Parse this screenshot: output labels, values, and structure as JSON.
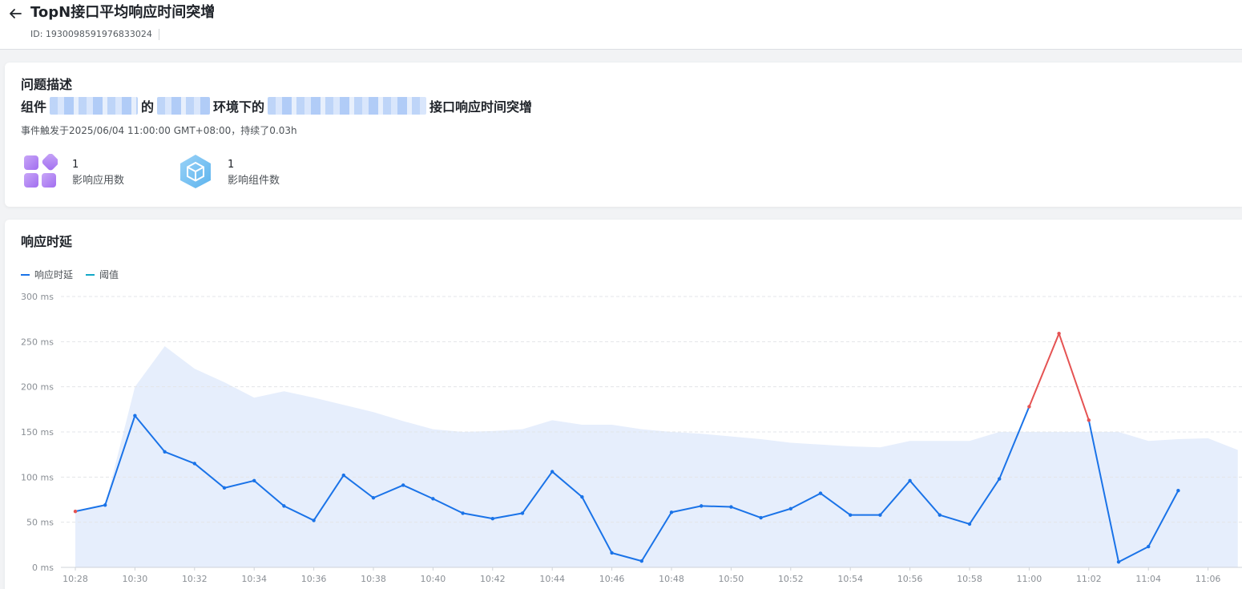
{
  "header": {
    "title": "TopN接口平均响应时间突增",
    "id_text": "ID: 1930098591976833024"
  },
  "problem": {
    "section_title": "问题描述",
    "desc_part1": "组件",
    "desc_part2": "的",
    "desc_part3": "环境下的",
    "desc_part4": "接口响应时间突增",
    "event_text": "事件触发于2025/06/04 11:00:00 GMT+08:00，持续了0.03h",
    "stats": [
      {
        "value": "1",
        "label": "影响应用数",
        "icon": "apps-icon"
      },
      {
        "value": "1",
        "label": "影响组件数",
        "icon": "component-cube-icon"
      }
    ]
  },
  "latency": {
    "section_title": "响应时延",
    "legend": [
      {
        "label": "响应时延",
        "color": "#1a73e8"
      },
      {
        "label": "阈值",
        "color": "#13a8c7"
      }
    ]
  },
  "colors": {
    "line": "#1a73e8",
    "alert": "#e55353",
    "threshold_area": "#e6eefc",
    "grid": "#e3e5e8"
  },
  "chart_data": {
    "type": "line",
    "title": "",
    "xlabel": "",
    "ylabel": "",
    "y_unit": "ms",
    "ylim": [
      0,
      300
    ],
    "y_ticks": [
      "0 ms",
      "50 ms",
      "100 ms",
      "150 ms",
      "200 ms",
      "250 ms",
      "300 ms"
    ],
    "x_ticks": [
      "10:28",
      "10:30",
      "10:32",
      "10:34",
      "10:36",
      "10:38",
      "10:40",
      "10:42",
      "10:44",
      "10:46",
      "10:48",
      "10:50",
      "10:52",
      "10:54",
      "10:56",
      "10:58",
      "11:00",
      "11:02",
      "11:04",
      "11:06"
    ],
    "x": [
      "10:28",
      "10:29",
      "10:30",
      "10:31",
      "10:32",
      "10:33",
      "10:34",
      "10:35",
      "10:36",
      "10:37",
      "10:38",
      "10:39",
      "10:40",
      "10:41",
      "10:42",
      "10:43",
      "10:44",
      "10:45",
      "10:46",
      "10:47",
      "10:48",
      "10:49",
      "10:50",
      "10:51",
      "10:52",
      "10:53",
      "10:54",
      "10:55",
      "10:56",
      "10:57",
      "10:58",
      "10:59",
      "11:00",
      "11:01",
      "11:02",
      "11:03",
      "11:04",
      "11:05",
      "11:06",
      "11:07"
    ],
    "grid": true,
    "legend_position": "top-left",
    "series": [
      {
        "name": "响应时延",
        "values": [
          62,
          69,
          168,
          128,
          115,
          88,
          96,
          68,
          52,
          102,
          77,
          91,
          76,
          60,
          54,
          60,
          106,
          78,
          16,
          7,
          61,
          68,
          67,
          55,
          65,
          82,
          58,
          58,
          96,
          58,
          48,
          98,
          178,
          259,
          163,
          6,
          23,
          85,
          null,
          null
        ],
        "alert_from": "11:00",
        "alert_to": "11:02"
      },
      {
        "name": "阈值",
        "style": "area",
        "values": [
          62,
          69,
          200,
          245,
          220,
          205,
          188,
          195,
          188,
          180,
          172,
          162,
          153,
          150,
          151,
          153,
          163,
          158,
          158,
          153,
          150,
          148,
          145,
          142,
          138,
          136,
          134,
          133,
          140,
          140,
          140,
          150,
          150,
          150,
          150,
          150,
          140,
          142,
          143,
          130
        ]
      }
    ]
  }
}
